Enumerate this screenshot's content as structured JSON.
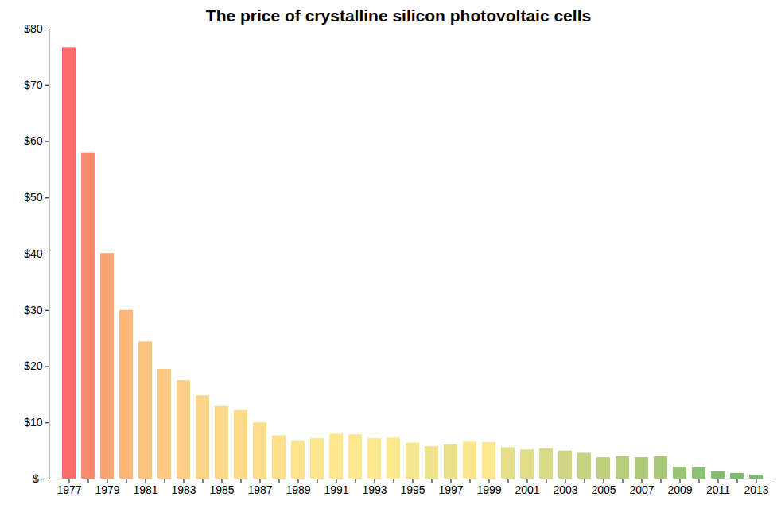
{
  "chart_data": {
    "type": "bar",
    "title": "The price of crystalline silicon photovoltaic cells",
    "categories": [
      "1977",
      null,
      "1979",
      null,
      "1981",
      null,
      "1983",
      null,
      "1985",
      null,
      "1987",
      null,
      "1989",
      null,
      "1991",
      null,
      "1993",
      null,
      "1995",
      null,
      "1997",
      null,
      "1999",
      null,
      "2001",
      null,
      "2003",
      null,
      "2005",
      null,
      "2007",
      null,
      "2009",
      null,
      "2011",
      null,
      "2013"
    ],
    "values": [
      76.7,
      58,
      40.1,
      30,
      24.4,
      19.5,
      17.5,
      14.8,
      12.9,
      12.2,
      10,
      7.7,
      6.7,
      7.2,
      8,
      7.9,
      7.2,
      7.3,
      6.4,
      5.8,
      6.1,
      6.6,
      6.5,
      5.6,
      5.2,
      5.4,
      5,
      4.6,
      3.8,
      4,
      3.8,
      4,
      2.1,
      2,
      1.3,
      1,
      0.7
    ],
    "colors": [
      "#ff6b6b",
      "#fa8a6d",
      "#f9a572",
      "#fbb878",
      "#fbc37d",
      "#fcca80",
      "#fccf83",
      "#fcd485",
      "#fdd887",
      "#fddb88",
      "#fdde89",
      "#fde18a",
      "#fee38b",
      "#fee58c",
      "#fee78c",
      "#fee88d",
      "#fee88d",
      "#fee98d",
      "#f6e58c",
      "#f0e38b",
      "#ebe18a",
      "#fbe88d",
      "#fde88d",
      "#e6df89",
      "#e0dc87",
      "#d9da86",
      "#d0d683",
      "#c8d380",
      "#bed07e",
      "#b6cd7c",
      "#afcb7a",
      "#a6c878",
      "#97c475",
      "#8dc173",
      "#84be71",
      "#7dbc70",
      "#78ba6f"
    ],
    "ylim": [
      0,
      80
    ],
    "yticks": [
      {
        "value": 0,
        "label": "$-"
      },
      {
        "value": 10,
        "label": "$10"
      },
      {
        "value": 20,
        "label": "$20"
      },
      {
        "value": 30,
        "label": "$30"
      },
      {
        "value": 40,
        "label": "$40"
      },
      {
        "value": 50,
        "label": "$50"
      },
      {
        "value": 60,
        "label": "$60"
      },
      {
        "value": 70,
        "label": "$70"
      },
      {
        "value": 80,
        "label": "$80"
      }
    ],
    "grid": false
  }
}
